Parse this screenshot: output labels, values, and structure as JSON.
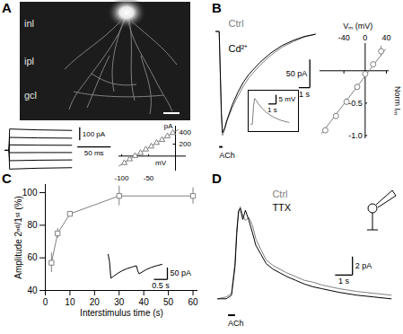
{
  "image": {
    "panel": "A",
    "labels": [
      "inl",
      "ipl",
      "gcl"
    ]
  },
  "chart_data": [
    {
      "type": "line",
      "tick_labels": false,
      "xlim": [
        0,
        160
      ],
      "ylim": [
        -160,
        180
      ],
      "x": [
        0,
        6,
        7,
        50,
        100
      ],
      "series": [
        {
          "color": "#000000",
          "values": [
            0,
            0,
            165,
            158,
            154
          ]
        },
        {
          "color": "#000000",
          "values": [
            0,
            0,
            100,
            96,
            94
          ]
        },
        {
          "color": "#000000",
          "values": [
            0,
            0,
            42,
            40,
            39
          ]
        },
        {
          "color": "#000000",
          "values": [
            0,
            0,
            -18,
            -17,
            -17
          ]
        },
        {
          "color": "#000000",
          "values": [
            0,
            0,
            -80,
            -76,
            -74
          ]
        },
        {
          "color": "#000000",
          "values": [
            0,
            0,
            -145,
            -138,
            -134
          ]
        }
      ],
      "scalebars": [
        {
          "value": 100,
          "label": "100 pA"
        },
        {
          "value": 50,
          "label": "50 ms"
        }
      ]
    },
    {
      "type": "scatter",
      "marker": "triangle",
      "color": "#808080",
      "xlabel": "mV",
      "ylabel": "pA",
      "xlim": [
        -105,
        20
      ],
      "ylim": [
        -250,
        500
      ],
      "xticks": [
        -100,
        -50
      ],
      "yticks": [
        200,
        400
      ],
      "x": [
        -95,
        -85,
        -75,
        -65,
        -55,
        -45,
        -35,
        -25,
        -15,
        -5
      ],
      "values": [
        -115,
        -52,
        4,
        53,
        112,
        162,
        222,
        271,
        333,
        388
      ],
      "fit": {
        "x": [
          -105,
          5
        ],
        "y": [
          -165,
          440
        ]
      }
    },
    {
      "type": "line",
      "panel": "B",
      "tick_labels": false,
      "xlim": [
        0,
        9.5
      ],
      "ylim": [
        -215,
        20
      ],
      "x": [
        0,
        0.3,
        0.5,
        0.6,
        0.8,
        1,
        1.5,
        2,
        2.5,
        3,
        4,
        5,
        6,
        7,
        8,
        9
      ],
      "series": [
        {
          "name": "Ctrl",
          "color": "#808080",
          "values": [
            0,
            0,
            -150,
            -185,
            -175,
            -160,
            -135,
            -115,
            -97,
            -82,
            -60,
            -42,
            -28,
            -18,
            -10,
            -5
          ]
        },
        {
          "name": "Cd²⁺",
          "color": "#000000",
          "values": [
            0,
            0,
            -145,
            -180,
            -172,
            -158,
            -130,
            -108,
            -90,
            -76,
            -55,
            -38,
            -25,
            -16,
            -9,
            -5
          ]
        }
      ],
      "stimulus": {
        "label": "ACh",
        "x": [
          0.3,
          0.6
        ]
      },
      "scalebars": [
        {
          "value": 50,
          "label": "50 pA"
        },
        {
          "value": 1,
          "label": "1 s"
        }
      ]
    },
    {
      "type": "line",
      "tick_labels": false,
      "xlim": [
        0,
        6
      ],
      "ylim": [
        -3,
        17
      ],
      "x": [
        0,
        0.2,
        0.35,
        0.5,
        0.7,
        1,
        1.5,
        2,
        2.5,
        3,
        4,
        5
      ],
      "series": [
        {
          "color": "#808080",
          "values": [
            0,
            0,
            10,
            14,
            13,
            11,
            8.5,
            6.5,
            5,
            3.8,
            2,
            1
          ]
        }
      ],
      "scalebars": [
        {
          "value": 5,
          "label": "5 mV"
        },
        {
          "value": 1,
          "label": "1 s"
        }
      ]
    },
    {
      "type": "scatter",
      "marker": "circle",
      "color": "#808080",
      "xlabel": "Vₘ (mV)",
      "ylabel": "Norm Iₘ",
      "xlim": [
        -85,
        45
      ],
      "ylim": [
        -1.05,
        0.42
      ],
      "xticks": [
        -40,
        0,
        40
      ],
      "yticks": [
        {
          "value": -1,
          "label": "-1.0"
        },
        {
          "value": -0.5,
          "label": "-0.5"
        }
      ],
      "x": [
        -75,
        -55,
        -35,
        -15,
        0,
        15,
        30
      ],
      "values": [
        -0.92,
        -0.7,
        -0.48,
        -0.25,
        -0.05,
        0.1,
        0.3
      ],
      "errors": [
        0.03,
        0.04,
        0.05,
        0.04,
        0.03,
        0.04,
        0.08
      ],
      "fit": {
        "x": [
          -82,
          38
        ],
        "y": [
          -0.97,
          0.33
        ]
      }
    },
    {
      "type": "line",
      "panel": "C",
      "marker": "square",
      "color": "#808080",
      "xlabel": "Interstimulus time (s)",
      "ylabel": "Amplitude 2ⁿᵈ/1ˢᵗ (%)",
      "xlim": [
        0,
        62
      ],
      "ylim": [
        40,
        105
      ],
      "xticks": [
        0,
        10,
        20,
        30,
        40,
        50,
        60
      ],
      "yticks": [
        40,
        60,
        80,
        100
      ],
      "x": [
        2.5,
        5,
        10,
        30,
        60
      ],
      "values": [
        57,
        75,
        87,
        98,
        98
      ],
      "errors": [
        6,
        3,
        1.5,
        6,
        5
      ]
    },
    {
      "type": "line",
      "tick_labels": false,
      "xlim": [
        0,
        3.2
      ],
      "ylim": [
        -110,
        10
      ],
      "x": [
        0,
        0.05,
        0.1,
        0.2,
        0.35,
        0.5,
        0.7,
        0.9,
        1.05,
        1.1,
        1.15,
        1.25,
        1.4,
        1.6,
        1.8,
        2.0
      ],
      "series": [
        {
          "color": "#000000",
          "values": [
            0,
            -30,
            -100,
            -92,
            -80,
            -70,
            -60,
            -53,
            -48,
            -70,
            -82,
            -75,
            -65,
            -55,
            -48,
            -42
          ]
        }
      ],
      "scalebars": [
        {
          "value": 50,
          "label": "50 pA"
        },
        {
          "value": 0.5,
          "label": "0.5 s"
        }
      ]
    },
    {
      "type": "line",
      "panel": "D",
      "tick_labels": false,
      "xlim": [
        0,
        10.5
      ],
      "ylim": [
        -2.5,
        12
      ],
      "x": [
        0,
        0.5,
        0.8,
        1.0,
        1.1,
        1.2,
        1.3,
        1.45,
        1.6,
        1.8,
        2.0,
        2.2,
        2.5,
        2.8,
        3.2,
        3.6,
        4,
        4.5,
        5,
        5.5,
        6,
        7,
        8,
        9,
        10
      ],
      "series": [
        {
          "name": "Ctrl",
          "color": "#808080",
          "values": [
            0,
            0.2,
            0.6,
            4,
            7.5,
            9.2,
            10,
            9,
            8.5,
            8.8,
            8,
            6.5,
            5.3,
            4.2,
            3.6,
            3.2,
            2.8,
            2.4,
            2,
            1.8,
            1.5,
            1.1,
            0.8,
            0.6,
            0.4
          ]
        },
        {
          "name": "TTX",
          "color": "#000000",
          "values": [
            0,
            0,
            0.4,
            3.5,
            7,
            9.5,
            9.8,
            8.6,
            9.6,
            8.5,
            7.2,
            5.8,
            4.8,
            3.8,
            3.2,
            2.8,
            2.4,
            2,
            1.6,
            1.3,
            1.1,
            0.7,
            0.4,
            0.2,
            0
          ]
        }
      ],
      "stimulus": {
        "label": "ACh",
        "x": [
          0.6,
          1.0
        ]
      },
      "scalebars": [
        {
          "value": 2,
          "label": "2 pA"
        },
        {
          "value": 1,
          "label": "1 s"
        }
      ]
    }
  ]
}
